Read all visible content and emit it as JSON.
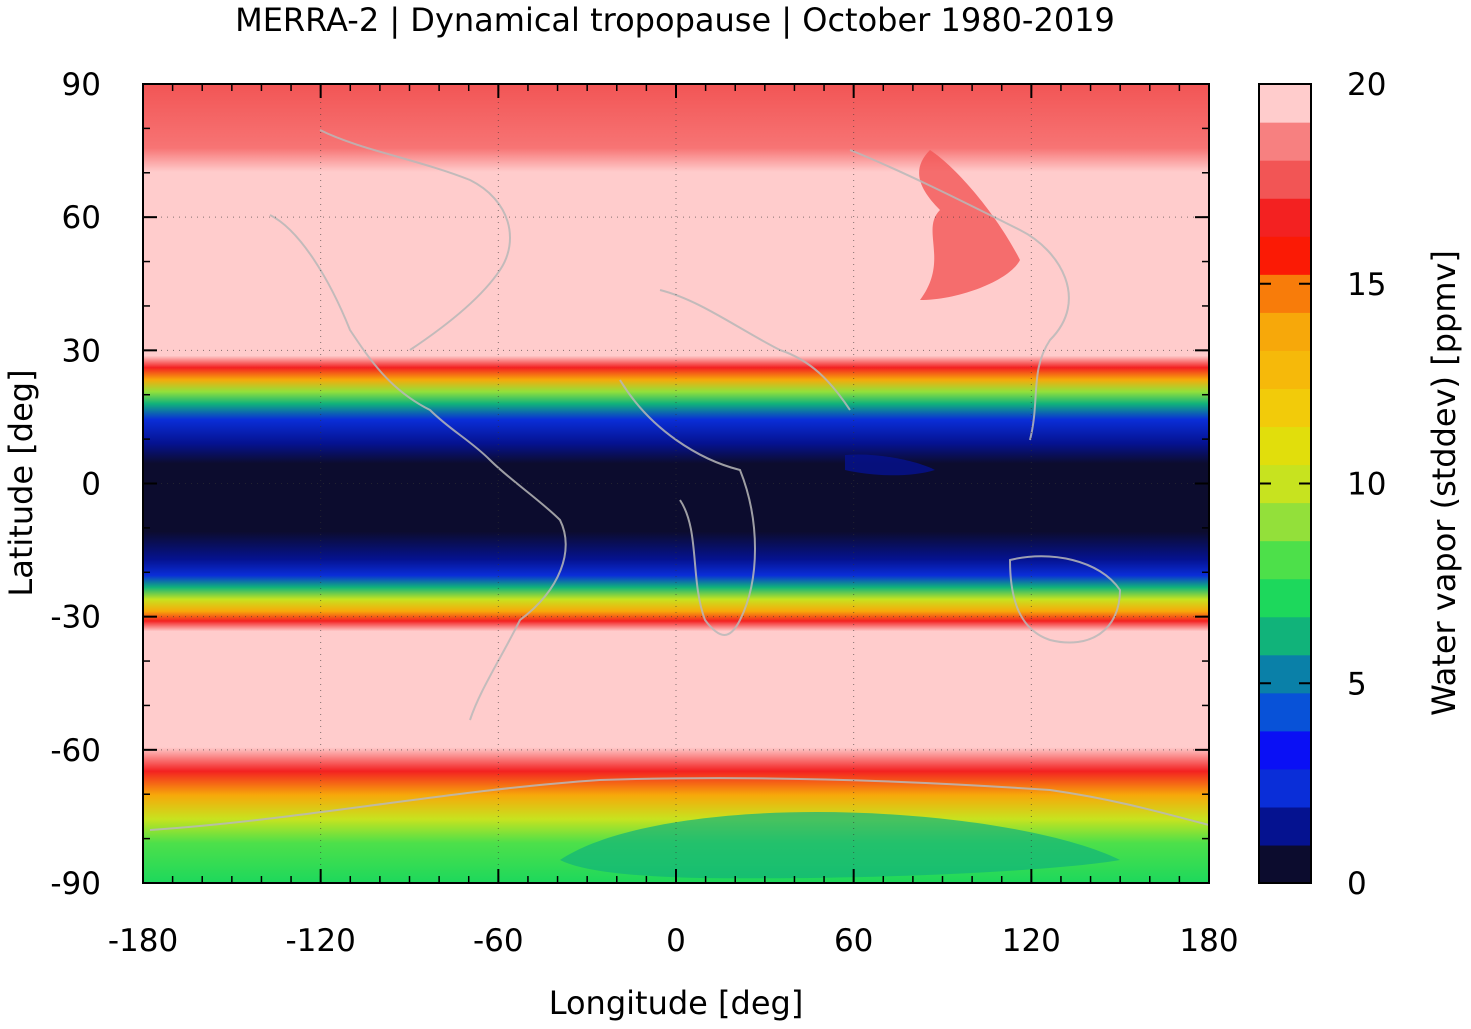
{
  "title": "MERRA-2 | Dynamical tropopause | October 1980-2019",
  "chart_data": {
    "type": "heatmap",
    "title": "MERRA-2 | Dynamical tropopause | October 1980-2019",
    "xlabel": "Longitude [deg]",
    "ylabel": "Latitude [deg]",
    "xlim": [
      -180,
      180
    ],
    "ylim": [
      -90,
      90
    ],
    "xticks": [
      "-180",
      "-120",
      "-60",
      "0",
      "60",
      "120",
      "180"
    ],
    "yticks": [
      "90",
      "60",
      "30",
      "0",
      "-30",
      "-60",
      "-90"
    ],
    "grid": true,
    "colorbar": {
      "label": "Water vapor (stddev) [ppmv]",
      "range": [
        0,
        20
      ],
      "ticks": [
        "20",
        "15",
        "10",
        "5",
        "0"
      ],
      "levels": [
        "#0c0c2e",
        "#051290",
        "#0a2ed8",
        "#0a10f5",
        "#0852d8",
        "#0a80a8",
        "#11b37a",
        "#1dd85c",
        "#4de04a",
        "#93e03a",
        "#c7e31f",
        "#e1de0c",
        "#f2cb0a",
        "#f6b90a",
        "#f7a80a",
        "#f87c0a",
        "#fb1a05",
        "#f32121",
        "#f25555",
        "#f78080",
        "#ffcccc"
      ]
    },
    "zonal_bands": [
      {
        "lat_from": 90,
        "lat_to": 70,
        "value": 18
      },
      {
        "lat_from": 70,
        "lat_to": 32,
        "value": 20
      },
      {
        "lat_from": 32,
        "lat_to": 24,
        "value": 11
      },
      {
        "lat_from": 24,
        "lat_to": 14,
        "value": 3
      },
      {
        "lat_from": 14,
        "lat_to": -10,
        "value": 0.5
      },
      {
        "lat_from": -10,
        "lat_to": -18,
        "value": 3
      },
      {
        "lat_from": -18,
        "lat_to": -26,
        "value": 11
      },
      {
        "lat_from": -26,
        "lat_to": -65,
        "value": 20
      },
      {
        "lat_from": -65,
        "lat_to": -72,
        "value": 15
      },
      {
        "lat_from": -72,
        "lat_to": -90,
        "value": 7
      }
    ]
  },
  "colors": {
    "background_pink": "#ffcccc",
    "deep_tropics": "#0c0c2e",
    "coastline": "#b8b8b8"
  }
}
